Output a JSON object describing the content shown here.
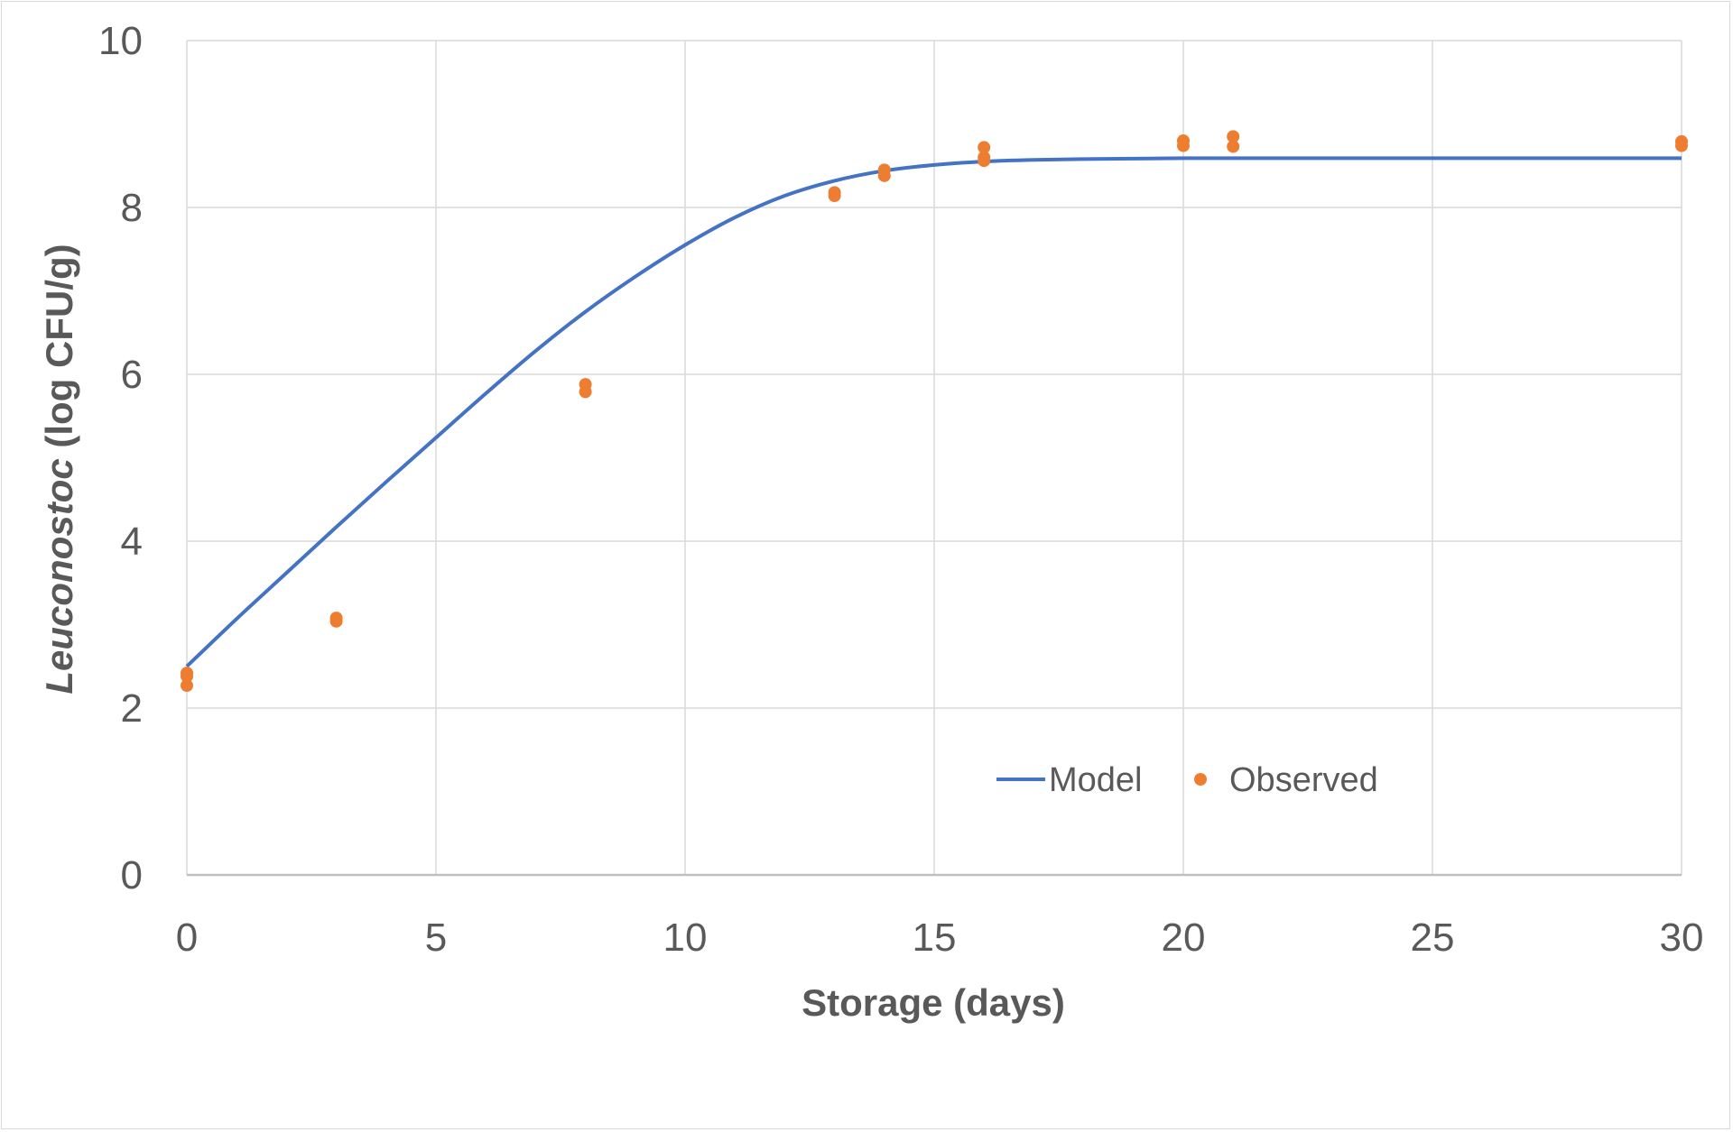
{
  "chart_data": {
    "type": "scatter",
    "xlabel": "Storage (days)",
    "ylabel_italic": "Leuconostoc",
    "ylabel_rest": " (log CFU/g)",
    "xlim": [
      0,
      30
    ],
    "ylim": [
      0,
      10
    ],
    "x_ticks": [
      "0",
      "5",
      "10",
      "15",
      "20",
      "25",
      "30"
    ],
    "y_ticks": [
      "0",
      "2",
      "4",
      "6",
      "8",
      "10"
    ],
    "grid": true,
    "legend_position": "bottom-right",
    "series": [
      {
        "name": "Model",
        "kind": "line",
        "color": "#4472c4",
        "x": [
          0,
          1,
          2,
          3,
          4,
          5,
          6,
          7,
          8,
          9,
          10,
          11,
          12,
          13,
          14,
          15,
          16,
          17,
          18,
          19,
          20,
          22,
          24,
          26,
          28,
          30
        ],
        "y": [
          2.5,
          3.07,
          3.62,
          4.17,
          4.71,
          5.24,
          5.77,
          6.28,
          6.75,
          7.17,
          7.55,
          7.88,
          8.14,
          8.32,
          8.44,
          8.51,
          8.55,
          8.57,
          8.58,
          8.585,
          8.59,
          8.59,
          8.59,
          8.59,
          8.59,
          8.59
        ]
      },
      {
        "name": "Observed",
        "kind": "scatter",
        "color": "#ed7d31",
        "x": [
          0,
          0,
          0,
          3,
          3,
          8,
          8,
          13,
          13,
          14,
          14,
          16,
          16,
          16,
          20,
          20,
          21,
          21,
          30,
          30
        ],
        "y": [
          2.42,
          2.38,
          2.27,
          3.08,
          3.04,
          5.88,
          5.79,
          8.18,
          8.14,
          8.45,
          8.38,
          8.72,
          8.6,
          8.56,
          8.8,
          8.74,
          8.85,
          8.73,
          8.79,
          8.74
        ]
      }
    ]
  }
}
